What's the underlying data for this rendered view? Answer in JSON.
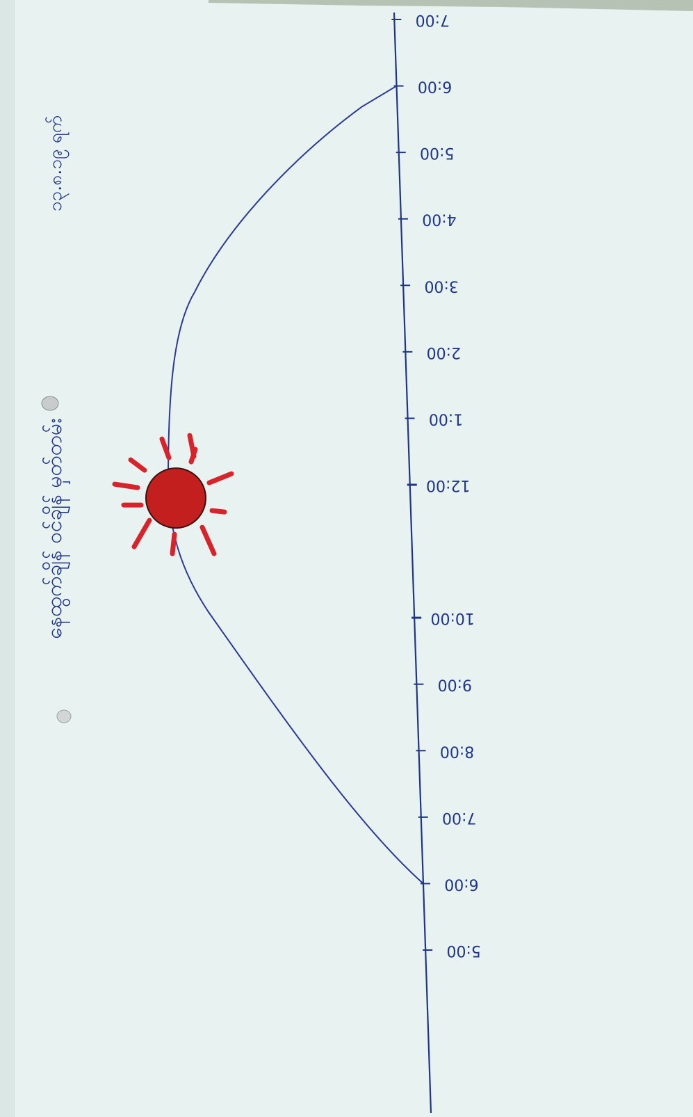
{
  "title": "နေထွက်ချိန် ဝင်ချိန် မှတ်တမ်း",
  "date": "၁၃.၈.၁၉ ရက်",
  "time_axis": {
    "ticks": [
      {
        "label": "5:00",
        "hour": 5
      },
      {
        "label": "6:00",
        "hour": 6
      },
      {
        "label": "7:00",
        "hour": 7
      },
      {
        "label": "8:00",
        "hour": 8
      },
      {
        "label": "9:00",
        "hour": 9
      },
      {
        "label": "10:00",
        "hour": 10
      },
      {
        "label": "12:00",
        "hour": 12
      },
      {
        "label": "1:00",
        "hour": 13
      },
      {
        "label": "2:00",
        "hour": 14
      },
      {
        "label": "3:00",
        "hour": 15
      },
      {
        "label": "4:00",
        "hour": 16
      },
      {
        "label": "5:00",
        "hour": 17
      },
      {
        "label": "6:00",
        "hour": 18
      },
      {
        "label": "7:00",
        "hour": 19
      }
    ]
  },
  "sun_path": {
    "sunrise_hour": 6,
    "sunset_hour": 18,
    "sun_hour": 11.8
  },
  "colors": {
    "paper": "#e8f2f1",
    "ink": "#1f3588",
    "sun_fill": "#c31f1f",
    "sun_rays": "#d8232a",
    "sun_outline": "#3a1010"
  },
  "icons": {
    "sun": "sun-icon"
  }
}
